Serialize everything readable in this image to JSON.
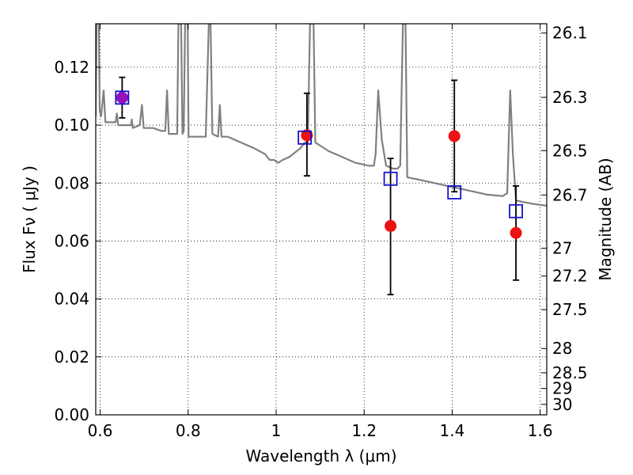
{
  "chart_data": {
    "type": "scatter",
    "xlabel": "Wavelength  λ (μm)",
    "ylabel": "Flux  Fν  ( μJy )",
    "y2label": "Magnitude (AB)",
    "xlim": [
      0.59,
      1.615
    ],
    "ylim": [
      0.0,
      0.135
    ],
    "grid": true,
    "x_ticks": [
      {
        "value": 0.6,
        "label": "0.6"
      },
      {
        "value": 0.8,
        "label": "0.8"
      },
      {
        "value": 1.0,
        "label": "1"
      },
      {
        "value": 1.2,
        "label": "1.2"
      },
      {
        "value": 1.4,
        "label": "1.4"
      },
      {
        "value": 1.6,
        "label": "1.6"
      }
    ],
    "y_ticks": [
      {
        "value": 0.0,
        "label": "0.00"
      },
      {
        "value": 0.02,
        "label": "0.02"
      },
      {
        "value": 0.04,
        "label": "0.04"
      },
      {
        "value": 0.06,
        "label": "0.06"
      },
      {
        "value": 0.08,
        "label": "0.08"
      },
      {
        "value": 0.1,
        "label": "0.10"
      },
      {
        "value": 0.12,
        "label": "0.12"
      }
    ],
    "y2_ticks": [
      {
        "flux": 0.1318,
        "label": "26.1"
      },
      {
        "flux": 0.1096,
        "label": "26.3"
      },
      {
        "flux": 0.0912,
        "label": "26.5"
      },
      {
        "flux": 0.0759,
        "label": "26.7"
      },
      {
        "flux": 0.0575,
        "label": "27"
      },
      {
        "flux": 0.0479,
        "label": "27.2"
      },
      {
        "flux": 0.0363,
        "label": "27.5"
      },
      {
        "flux": 0.0229,
        "label": "28"
      },
      {
        "flux": 0.0145,
        "label": "28.5"
      },
      {
        "flux": 0.0091,
        "label": "29"
      },
      {
        "flux": 0.0036,
        "label": "30"
      }
    ],
    "series": [
      {
        "kind": "line",
        "color": "#808080",
        "points": [
          [
            0.59,
            0.103
          ],
          [
            0.592,
            0.135
          ],
          [
            0.597,
            0.135
          ],
          [
            0.599,
            0.105
          ],
          [
            0.602,
            0.103
          ],
          [
            0.608,
            0.112
          ],
          [
            0.612,
            0.101
          ],
          [
            0.62,
            0.101
          ],
          [
            0.635,
            0.101
          ],
          [
            0.638,
            0.104
          ],
          [
            0.641,
            0.1
          ],
          [
            0.655,
            0.1
          ],
          [
            0.66,
            0.1
          ],
          [
            0.67,
            0.1
          ],
          [
            0.672,
            0.102
          ],
          [
            0.674,
            0.099
          ],
          [
            0.69,
            0.1
          ],
          [
            0.695,
            0.107
          ],
          [
            0.699,
            0.099
          ],
          [
            0.72,
            0.099
          ],
          [
            0.74,
            0.098
          ],
          [
            0.748,
            0.098
          ],
          [
            0.752,
            0.112
          ],
          [
            0.756,
            0.097
          ],
          [
            0.775,
            0.097
          ],
          [
            0.778,
            0.135
          ],
          [
            0.784,
            0.135
          ],
          [
            0.787,
            0.097
          ],
          [
            0.79,
            0.098
          ],
          [
            0.793,
            0.135
          ],
          [
            0.799,
            0.135
          ],
          [
            0.801,
            0.096
          ],
          [
            0.84,
            0.096
          ],
          [
            0.847,
            0.135
          ],
          [
            0.851,
            0.135
          ],
          [
            0.855,
            0.097
          ],
          [
            0.868,
            0.096
          ],
          [
            0.872,
            0.107
          ],
          [
            0.876,
            0.096
          ],
          [
            0.89,
            0.096
          ],
          [
            0.92,
            0.094
          ],
          [
            0.95,
            0.092
          ],
          [
            0.975,
            0.09
          ],
          [
            0.985,
            0.088
          ],
          [
            0.995,
            0.088
          ],
          [
            1.005,
            0.087
          ],
          [
            1.015,
            0.088
          ],
          [
            1.03,
            0.089
          ],
          [
            1.055,
            0.092
          ],
          [
            1.065,
            0.094
          ],
          [
            1.072,
            0.094
          ],
          [
            1.077,
            0.135
          ],
          [
            1.085,
            0.135
          ],
          [
            1.089,
            0.094
          ],
          [
            1.12,
            0.091
          ],
          [
            1.15,
            0.089
          ],
          [
            1.18,
            0.087
          ],
          [
            1.21,
            0.086
          ],
          [
            1.222,
            0.086
          ],
          [
            1.226,
            0.09
          ],
          [
            1.232,
            0.112
          ],
          [
            1.24,
            0.095
          ],
          [
            1.25,
            0.086
          ],
          [
            1.265,
            0.085
          ],
          [
            1.276,
            0.085
          ],
          [
            1.282,
            0.086
          ],
          [
            1.288,
            0.135
          ],
          [
            1.294,
            0.135
          ],
          [
            1.298,
            0.082
          ],
          [
            1.33,
            0.081
          ],
          [
            1.36,
            0.08
          ],
          [
            1.39,
            0.079
          ],
          [
            1.42,
            0.078
          ],
          [
            1.45,
            0.077
          ],
          [
            1.48,
            0.076
          ],
          [
            1.515,
            0.0755
          ],
          [
            1.525,
            0.0765
          ],
          [
            1.532,
            0.112
          ],
          [
            1.538,
            0.09
          ],
          [
            1.545,
            0.074
          ],
          [
            1.56,
            0.0735
          ],
          [
            1.585,
            0.0728
          ],
          [
            1.615,
            0.0722
          ]
        ]
      },
      {
        "kind": "errorbar",
        "color": "#000000",
        "points": [
          {
            "x": 0.65,
            "low": 0.1025,
            "high": 0.1165
          },
          {
            "x": 1.07,
            "low": 0.0825,
            "high": 0.111
          },
          {
            "x": 1.26,
            "low": 0.0415,
            "high": 0.0885
          },
          {
            "x": 1.405,
            "low": 0.077,
            "high": 0.1155
          },
          {
            "x": 1.545,
            "low": 0.0465,
            "high": 0.079
          }
        ]
      },
      {
        "kind": "markers",
        "marker": "circle",
        "color": "#ee1111",
        "points": [
          {
            "x": 0.65,
            "y": 0.1095,
            "color": "#9911bb"
          },
          {
            "x": 1.07,
            "y": 0.0965
          },
          {
            "x": 1.26,
            "y": 0.0652
          },
          {
            "x": 1.405,
            "y": 0.0962
          },
          {
            "x": 1.545,
            "y": 0.0628
          }
        ]
      },
      {
        "kind": "markers",
        "marker": "square",
        "color": "#1111cc",
        "points": [
          {
            "x": 0.65,
            "y": 0.1095
          },
          {
            "x": 1.065,
            "y": 0.0957
          },
          {
            "x": 1.26,
            "y": 0.0815
          },
          {
            "x": 1.405,
            "y": 0.0768
          },
          {
            "x": 1.545,
            "y": 0.0703
          }
        ]
      }
    ]
  }
}
